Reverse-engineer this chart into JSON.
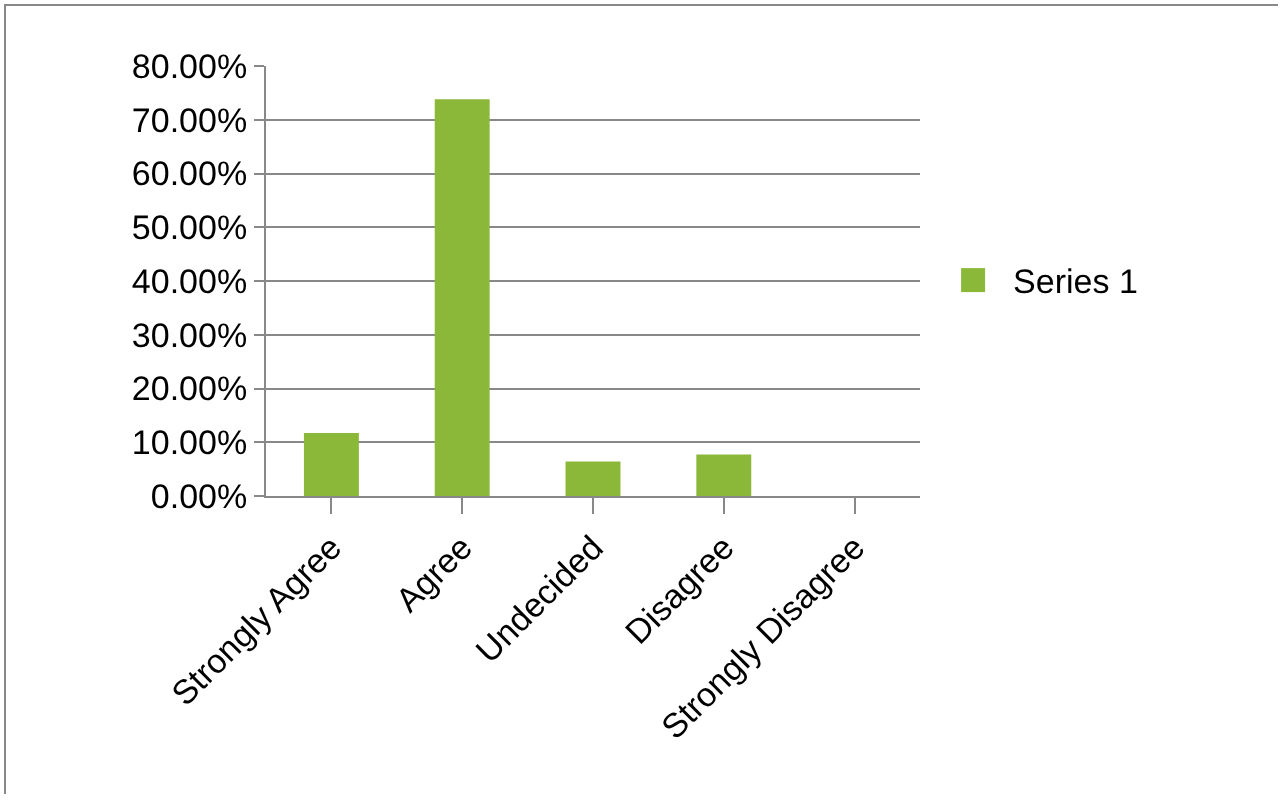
{
  "chart_data": {
    "type": "bar",
    "categories": [
      "Strongly Agree",
      "Agree",
      "Undecided",
      "Disagree",
      "Strongly Disagree"
    ],
    "series": [
      {
        "name": "Series 1",
        "color": "#8cb83a",
        "values": [
          11.7,
          73.8,
          6.4,
          7.7,
          0
        ]
      }
    ],
    "ylim": [
      0,
      80
    ],
    "yticks": [
      {
        "value": 0,
        "label": "0.00%"
      },
      {
        "value": 10,
        "label": "10.00%"
      },
      {
        "value": 20,
        "label": "20.00%"
      },
      {
        "value": 30,
        "label": "30.00%"
      },
      {
        "value": 40,
        "label": "40.00%"
      },
      {
        "value": 50,
        "label": "50.00%"
      },
      {
        "value": 60,
        "label": "60.00%"
      },
      {
        "value": 70,
        "label": "70.00%"
      },
      {
        "value": 80,
        "label": "80.00%"
      }
    ],
    "grid": "y",
    "legend": "right"
  }
}
